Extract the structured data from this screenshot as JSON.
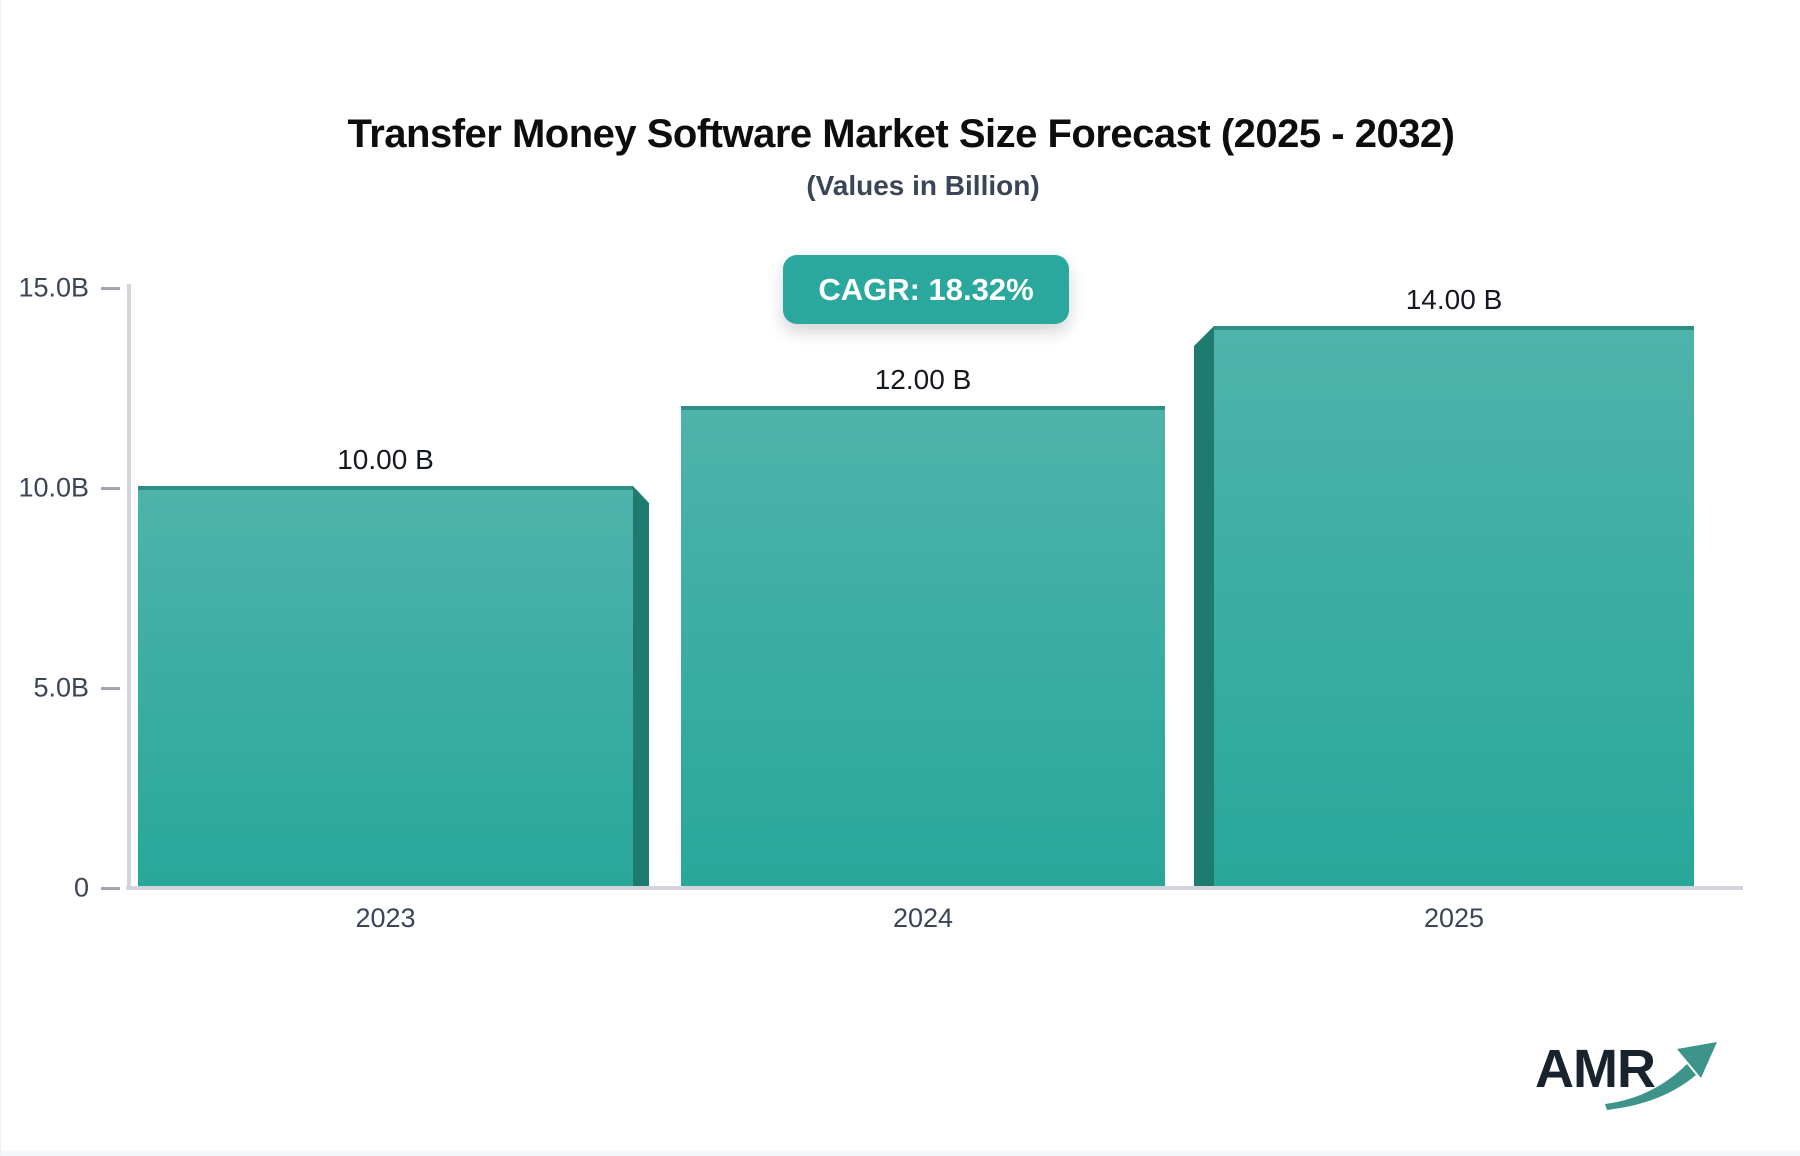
{
  "chart_data": {
    "type": "bar",
    "title": "Transfer Money Software Market Size Forecast (2025 - 2032)",
    "subtitle": "(Values in Billion)",
    "cagr_label": "CAGR: 18.32%",
    "categories": [
      "2023",
      "2024",
      "2025"
    ],
    "values": [
      10,
      12,
      14
    ],
    "value_labels": [
      "10.00 B",
      "12.00 B",
      "14.00 B"
    ],
    "xlabel": "",
    "ylabel": "",
    "ylim": [
      0,
      15
    ],
    "yticks": [
      {
        "label": "15.0B",
        "value": 15
      },
      {
        "label": "10.0B",
        "value": 10
      },
      {
        "label": "5.0B",
        "value": 5
      },
      {
        "label": "0",
        "value": 0
      }
    ],
    "grid": false,
    "legend_position": "none"
  },
  "logo": {
    "text": "AMR"
  },
  "colors": {
    "background": "#FFFFFF",
    "bar_gradient_top": "#4FB3AA",
    "bar_gradient_bottom": "#28A79A",
    "bar_top_edge": "#2E8E84",
    "bar_side_shadow": "#1F7B70",
    "badge_background": "#2BA89E",
    "badge_text": "#FFFFFF",
    "axis_line": "#D2D5DB",
    "tick_mark": "#A0A6B1",
    "axis_label": "#3C4555",
    "value_label": "#14181F",
    "title_text": "#0C0D0F",
    "subtitle_text": "#3A4557",
    "logo_text": "#18232D",
    "logo_arrow": "#3D948A"
  }
}
